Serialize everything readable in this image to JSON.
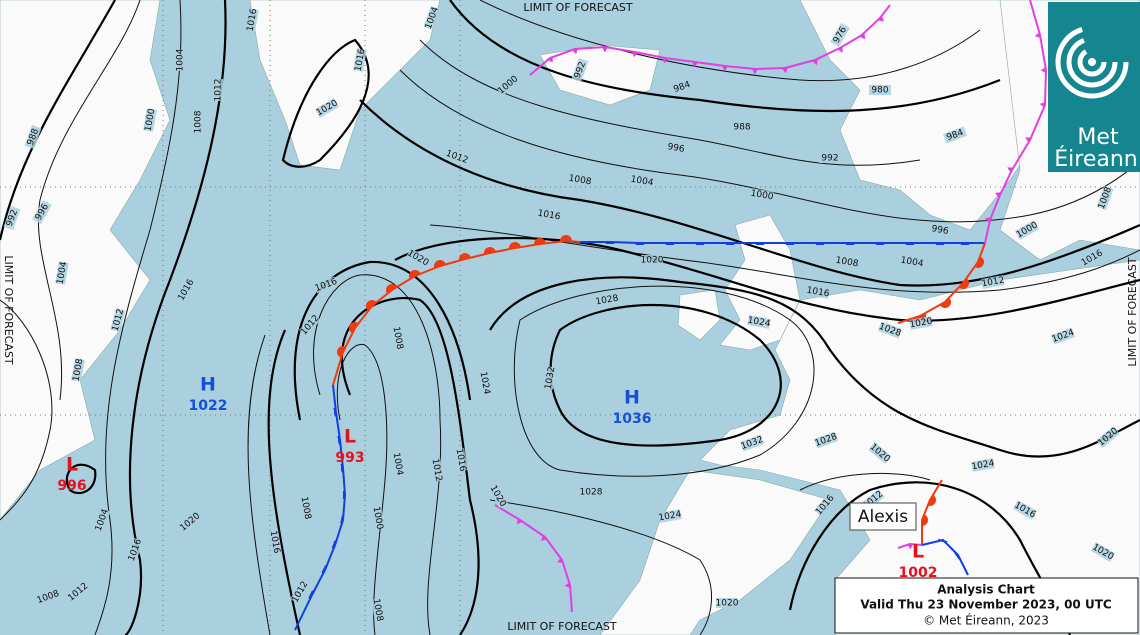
{
  "limit_labels": [
    "LIMIT OF FORECAST",
    "LIMIT OF FORECAST",
    "LIMIT OF FORECAST",
    "LIMIT OF FORECAST"
  ],
  "pressure_centres": [
    {
      "type": "L",
      "value": 996
    },
    {
      "type": "H",
      "value": 1022
    },
    {
      "type": "L",
      "value": 993
    },
    {
      "type": "H",
      "value": 1036
    },
    {
      "type": "L",
      "value": 1002
    }
  ],
  "storm_name": "Alexis",
  "logo": {
    "line1": "Met",
    "line2": "Éireann"
  },
  "caption": {
    "title": "Analysis Chart",
    "valid": "Valid Thu 23 November 2023, 00 UTC",
    "copyright": "© Met Éireann, 2023"
  },
  "isobar_labels": [
    1004,
    1016,
    1016,
    1020,
    1004,
    1012,
    1008,
    1000,
    988,
    996,
    992,
    1004,
    1016,
    1012,
    1008,
    1004,
    1016,
    1008,
    1012,
    1020,
    1000,
    992,
    984,
    988,
    996,
    1004,
    1000,
    1012,
    1008,
    976,
    980,
    992,
    984,
    996,
    1000,
    1008,
    1016,
    1012,
    1020,
    1024,
    1028,
    1016,
    1020,
    1008,
    1004,
    1016,
    1024,
    1028,
    1020,
    1016,
    1012,
    1008,
    1024,
    1032,
    1004,
    1012,
    1016,
    1000,
    1008,
    1016,
    1012,
    1008,
    1020,
    1028,
    1032,
    1024,
    1020,
    1028,
    1020,
    1024,
    1016,
    1012,
    1016,
    1020,
    1020
  ]
}
